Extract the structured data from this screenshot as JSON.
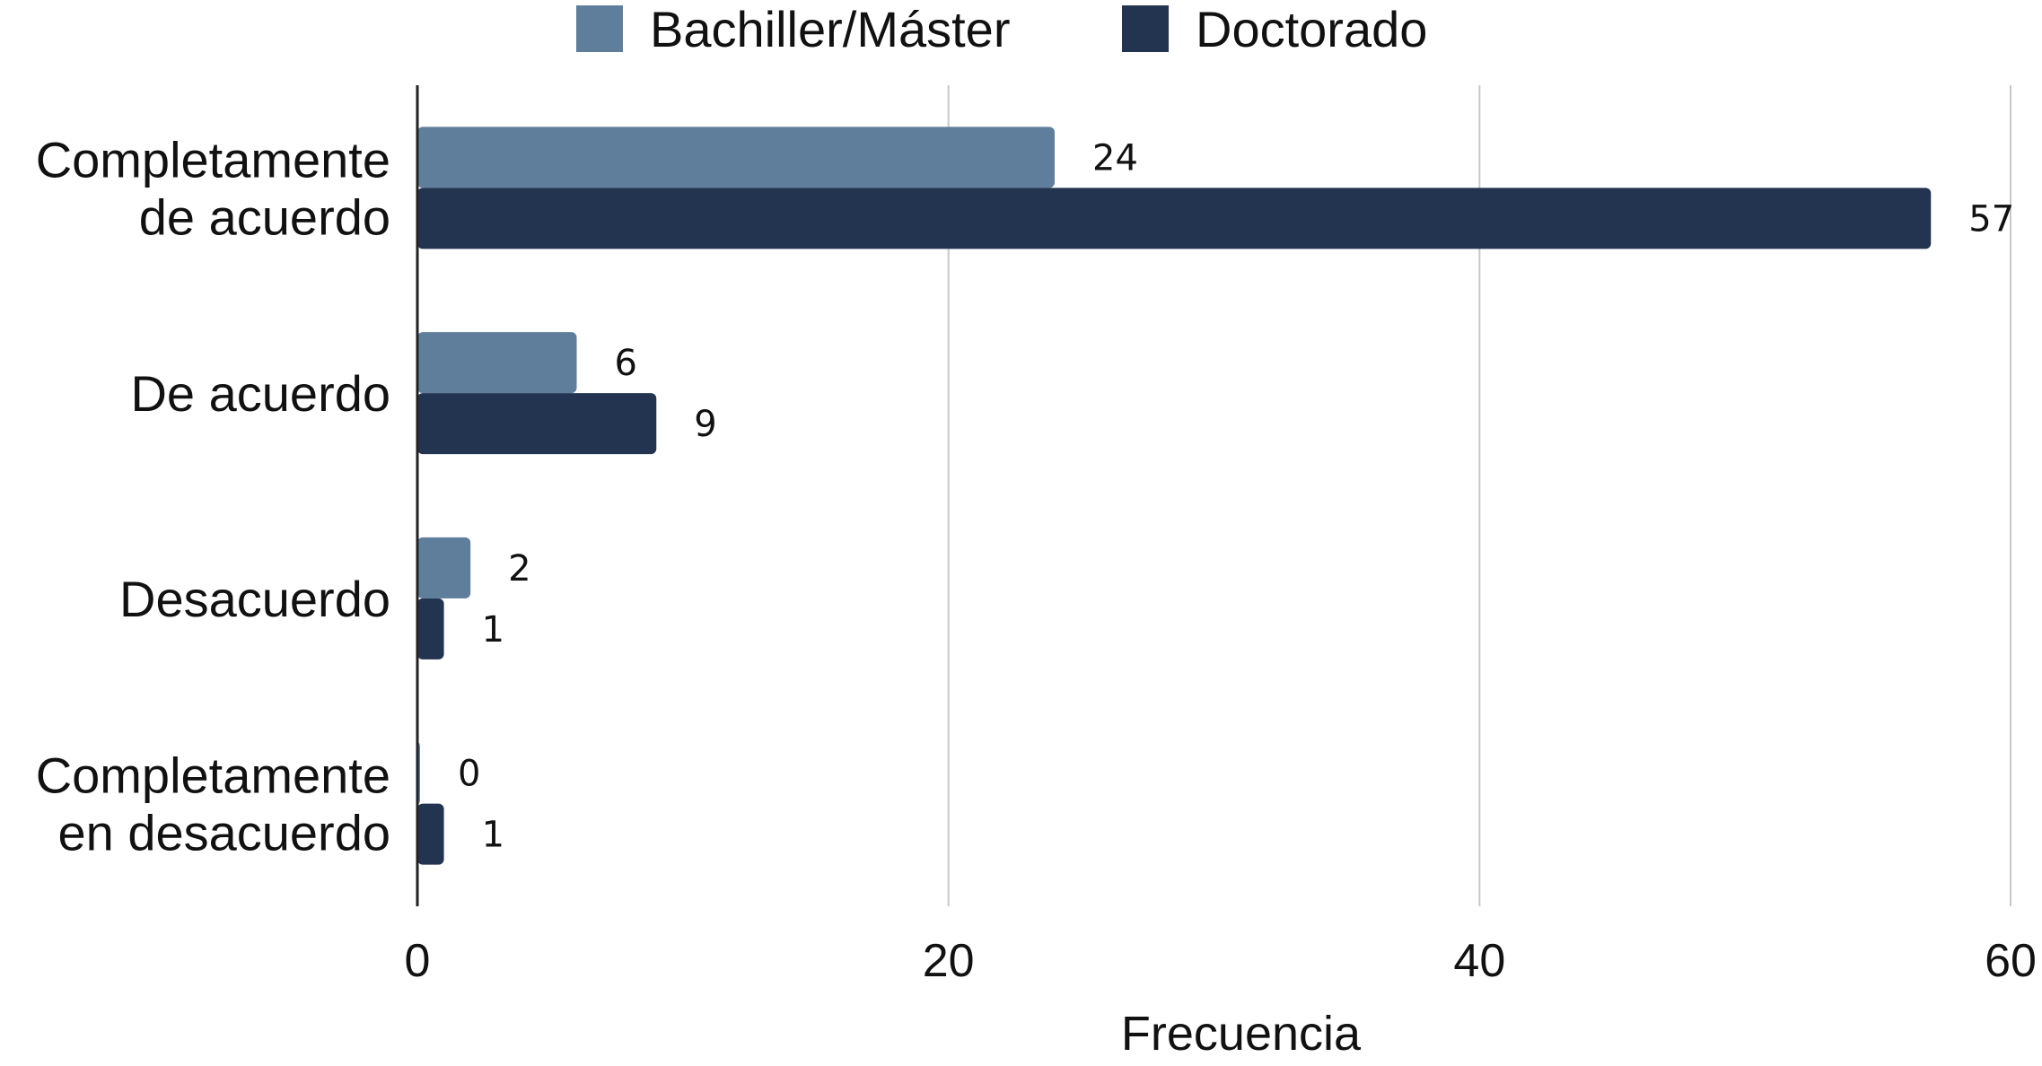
{
  "chart_data": {
    "type": "bar",
    "orientation": "horizontal",
    "categories": [
      [
        "Completamente",
        "de acuerdo"
      ],
      [
        "De acuerdo"
      ],
      [
        "Desacuerdo"
      ],
      [
        "Completamente",
        "en desacuerdo"
      ]
    ],
    "series": [
      {
        "name": "Bachiller/Máster",
        "values": [
          24,
          6,
          2,
          0
        ],
        "color": "#5f7e9c"
      },
      {
        "name": "Doctorado",
        "values": [
          57,
          9,
          1,
          1
        ],
        "color": "#22344f"
      }
    ],
    "xlabel": "Frecuencia",
    "ylabel": "",
    "xlim": [
      0,
      60
    ],
    "xticks": [
      0,
      20,
      40,
      60
    ],
    "grid": "vertical",
    "legend_position": "top",
    "data_labels": true
  }
}
